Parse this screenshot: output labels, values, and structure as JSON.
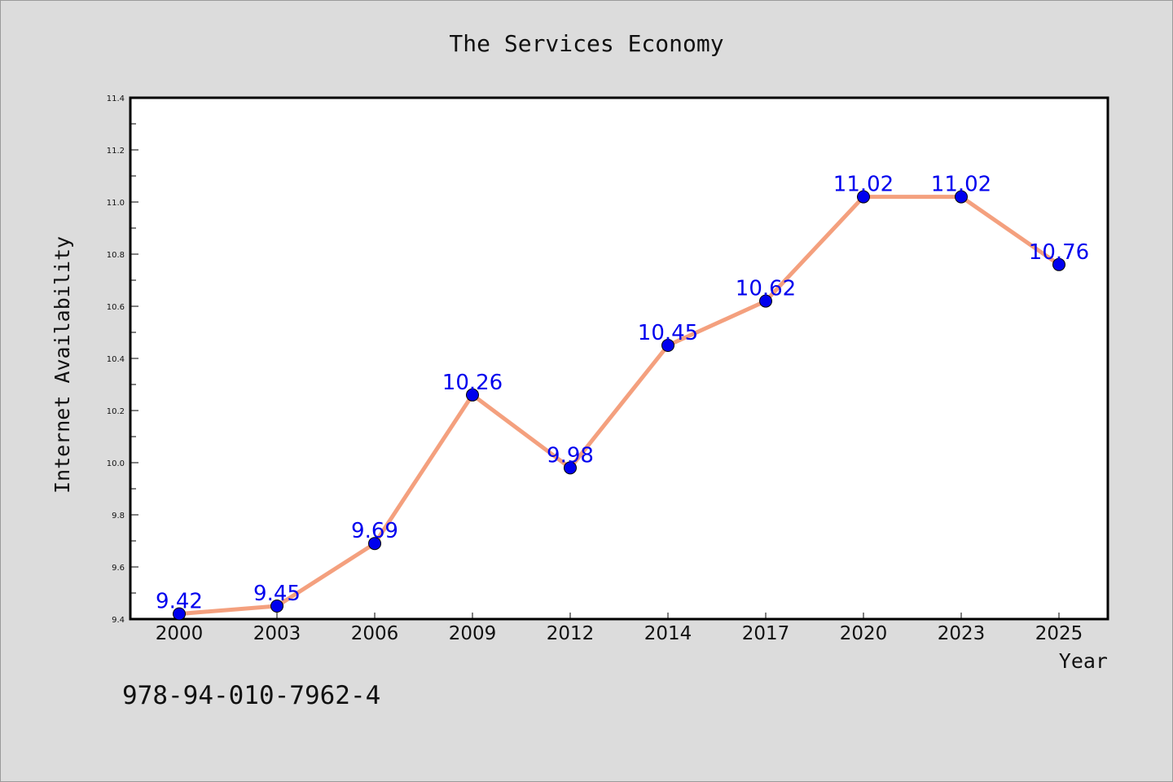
{
  "chart_data": {
    "type": "line",
    "title": "The Services Economy",
    "xlabel": "Year",
    "ylabel": "Internet Availability",
    "categories": [
      "2000",
      "2003",
      "2006",
      "2009",
      "2012",
      "2014",
      "2017",
      "2020",
      "2023",
      "2025"
    ],
    "series": [
      {
        "values": [
          9.42,
          9.45,
          9.69,
          10.26,
          9.98,
          10.45,
          10.62,
          11.02,
          11.02,
          10.76
        ],
        "data_labels": [
          "9.42",
          "9.45",
          "9.69",
          "10.26",
          "9.98",
          "10.45",
          "10.62",
          "11.02",
          "11.02",
          "10.76"
        ]
      }
    ],
    "ylim": [
      9.4,
      11.4
    ],
    "yticks": [
      "9.4",
      "9.6",
      "9.8",
      "10.0",
      "10.2",
      "10.4",
      "10.6",
      "10.8",
      "11.0",
      "11.2",
      "11.4"
    ],
    "grid": false,
    "legend": "none",
    "line_color": "#f4a07e",
    "marker_color": "#0000ee",
    "label_color": "#0000ee"
  },
  "footer": {
    "isbn": "978-94-010-7962-4"
  }
}
